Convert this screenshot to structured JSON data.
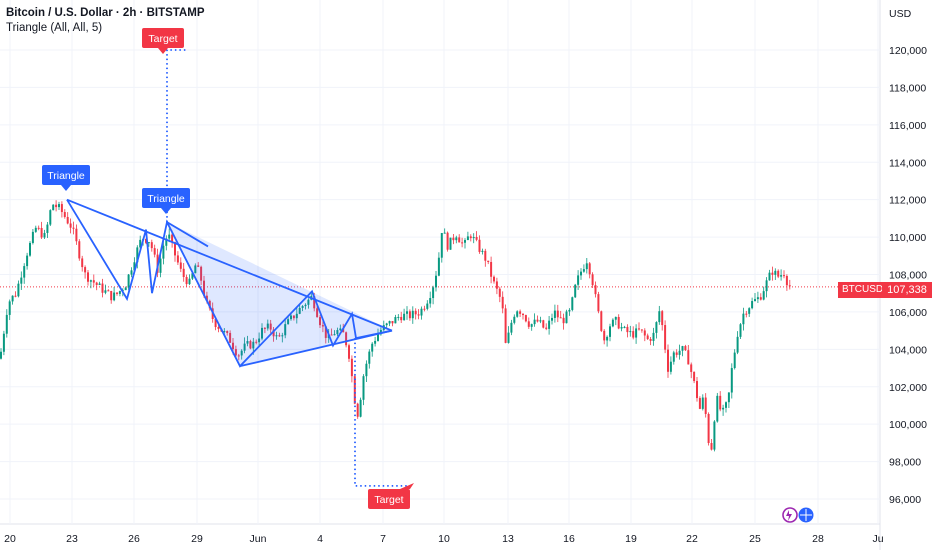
{
  "header": {
    "title": "Bitcoin / U.S. Dollar · 2h · BITSTAMP",
    "indicator": "Triangle (All, All, 5)"
  },
  "axis": {
    "currency": "USD",
    "symbol": "BTCUSD",
    "last_price": "107,338"
  },
  "labels": {
    "triangle_1": "Triangle",
    "triangle_2": "Triangle",
    "target_up": "Target",
    "target_down": "Target"
  },
  "colors": {
    "bull": "#089981",
    "bear": "#f23645",
    "pattern": "#2962ff",
    "label_blue": "#2962ff",
    "label_red": "#f23645",
    "grid": "#f0f3fa"
  },
  "chart_data": {
    "type": "candlestick",
    "y_ticks": [
      "96,000",
      "98,000",
      "100,000",
      "102,000",
      "104,000",
      "106,000",
      "108,000",
      "110,000",
      "112,000",
      "114,000",
      "116,000",
      "118,000",
      "120,000"
    ],
    "x_ticks": [
      "20",
      "23",
      "26",
      "29",
      "Jun",
      "4",
      "7",
      "10",
      "13",
      "16",
      "19",
      "22",
      "25",
      "28",
      "Ju"
    ],
    "ylim": [
      94500,
      122500
    ],
    "path": [
      [
        0,
        103500
      ],
      [
        8,
        106500
      ],
      [
        16,
        107000
      ],
      [
        26,
        109000
      ],
      [
        36,
        110500
      ],
      [
        45,
        110000
      ],
      [
        52,
        111800
      ],
      [
        60,
        111500
      ],
      [
        72,
        110500
      ],
      [
        85,
        108000
      ],
      [
        100,
        107300
      ],
      [
        112,
        106800
      ],
      [
        118,
        107000
      ],
      [
        126,
        107500
      ],
      [
        135,
        109000
      ],
      [
        142,
        110000
      ],
      [
        150,
        109800
      ],
      [
        158,
        108200
      ],
      [
        163,
        109500
      ],
      [
        168,
        110200
      ],
      [
        172,
        109500
      ],
      [
        182,
        108000
      ],
      [
        190,
        107500
      ],
      [
        195,
        108500
      ],
      [
        200,
        108000
      ],
      [
        206,
        106500
      ],
      [
        214,
        105500
      ],
      [
        222,
        105000
      ],
      [
        230,
        104500
      ],
      [
        238,
        103700
      ],
      [
        246,
        104200
      ],
      [
        254,
        104300
      ],
      [
        262,
        105000
      ],
      [
        270,
        105200
      ],
      [
        278,
        104500
      ],
      [
        286,
        105300
      ],
      [
        294,
        105800
      ],
      [
        302,
        106300
      ],
      [
        312,
        106800
      ],
      [
        320,
        105500
      ],
      [
        328,
        104500
      ],
      [
        336,
        105000
      ],
      [
        344,
        104800
      ],
      [
        350,
        103500
      ],
      [
        354,
        101500
      ],
      [
        358,
        100500
      ],
      [
        364,
        102800
      ],
      [
        372,
        104300
      ],
      [
        380,
        105000
      ],
      [
        390,
        105400
      ],
      [
        400,
        105800
      ],
      [
        410,
        105800
      ],
      [
        420,
        106000
      ],
      [
        426,
        106500
      ],
      [
        432,
        107200
      ],
      [
        438,
        108500
      ],
      [
        442,
        110500
      ],
      [
        448,
        109500
      ],
      [
        456,
        110200
      ],
      [
        464,
        109500
      ],
      [
        470,
        110200
      ],
      [
        478,
        109500
      ],
      [
        486,
        108800
      ],
      [
        494,
        107500
      ],
      [
        502,
        106500
      ],
      [
        506,
        104000
      ],
      [
        510,
        105200
      ],
      [
        516,
        106200
      ],
      [
        522,
        106000
      ],
      [
        530,
        105300
      ],
      [
        538,
        105500
      ],
      [
        546,
        105000
      ],
      [
        554,
        106000
      ],
      [
        562,
        105500
      ],
      [
        570,
        106000
      ],
      [
        576,
        107500
      ],
      [
        582,
        108300
      ],
      [
        587,
        108800
      ],
      [
        592,
        107800
      ],
      [
        598,
        106000
      ],
      [
        604,
        104500
      ],
      [
        610,
        105300
      ],
      [
        616,
        105500
      ],
      [
        624,
        105000
      ],
      [
        632,
        104800
      ],
      [
        640,
        105000
      ],
      [
        648,
        104500
      ],
      [
        654,
        104800
      ],
      [
        660,
        106200
      ],
      [
        664,
        104500
      ],
      [
        668,
        103000
      ],
      [
        674,
        103800
      ],
      [
        682,
        104000
      ],
      [
        688,
        103500
      ],
      [
        694,
        102200
      ],
      [
        700,
        100800
      ],
      [
        704,
        101500
      ],
      [
        708,
        99200
      ],
      [
        712,
        98700
      ],
      [
        716,
        101500
      ],
      [
        722,
        100500
      ],
      [
        728,
        101200
      ],
      [
        732,
        103000
      ],
      [
        738,
        105000
      ],
      [
        744,
        106000
      ],
      [
        752,
        106500
      ],
      [
        760,
        106800
      ],
      [
        766,
        107500
      ],
      [
        772,
        108200
      ],
      [
        778,
        107900
      ],
      [
        784,
        108100
      ],
      [
        788,
        107500
      ],
      [
        792,
        107300
      ]
    ],
    "last_price": 107338
  },
  "pattern": {
    "triangle1": {
      "apex_top": [
        67,
        112000
      ],
      "bottom": [
        240,
        103100
      ],
      "apex": [
        392,
        105000
      ]
    },
    "zigzag": [
      [
        67,
        112000
      ],
      [
        127,
        106700
      ],
      [
        146,
        110400
      ],
      [
        152,
        107000
      ],
      [
        167,
        110800
      ],
      [
        240,
        103100
      ],
      [
        312,
        107100
      ],
      [
        333,
        104200
      ],
      [
        352,
        105900
      ],
      [
        356,
        104600
      ],
      [
        392,
        105000
      ]
    ],
    "triangle2_edge": [
      [
        167,
        110800
      ],
      [
        208,
        109500
      ]
    ],
    "target_up": {
      "x": 167,
      "from": 110800,
      "to": 120000
    },
    "target_down": {
      "x": 355,
      "from": 104600,
      "to": 96700,
      "end_x": 410
    }
  }
}
